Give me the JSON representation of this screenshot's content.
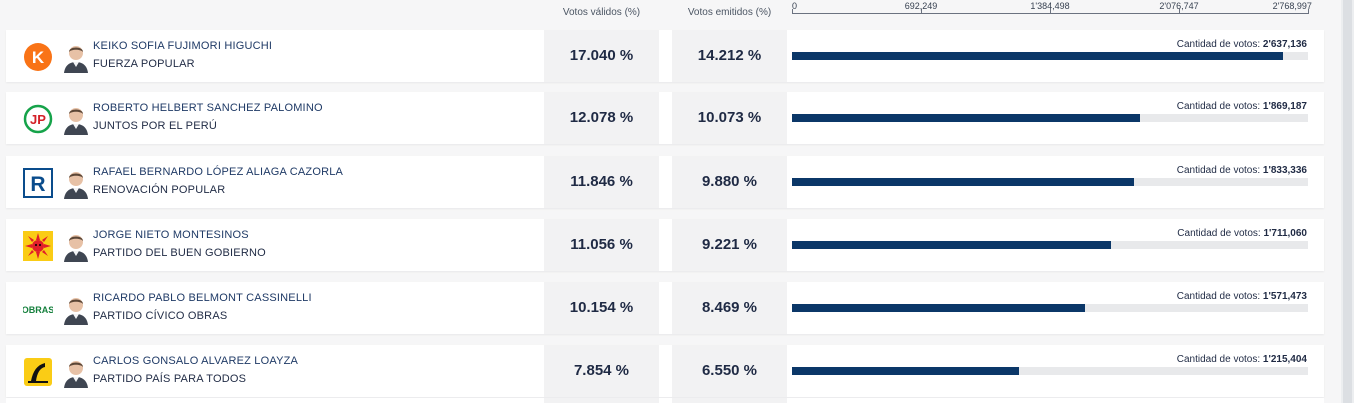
{
  "header": {
    "col_valid": "Votos válidos (%)",
    "col_emitted": "Votos emitidos (%)",
    "axis": {
      "min": 0,
      "max": 2768997,
      "ticks": [
        "0",
        "692,249",
        "1'384,498",
        "2'076,747",
        "2'768,997"
      ]
    }
  },
  "votes_prefix": "Cantidad de votos:",
  "rows": [
    {
      "candidate": "KEIKO SOFIA FUJIMORI HIGUCHI",
      "party": "FUERZA POPULAR",
      "valid_pct": "17.040 %",
      "emitted_pct": "14.212 %",
      "votes_text": "2'637,136",
      "votes": 2637136,
      "logo": "fuerza-popular-logo",
      "logo_color": "#f97316"
    },
    {
      "candidate": "ROBERTO HELBERT SANCHEZ PALOMINO",
      "party": "JUNTOS POR EL PERÚ",
      "valid_pct": "12.078 %",
      "emitted_pct": "10.073 %",
      "votes_text": "1'869,187",
      "votes": 1869187,
      "logo": "juntos-por-el-peru-logo",
      "logo_color": "#d42027"
    },
    {
      "candidate": "RAFAEL BERNARDO LÓPEZ ALIAGA CAZORLA",
      "party": "RENOVACIÓN POPULAR",
      "valid_pct": "11.846 %",
      "emitted_pct": "9.880 %",
      "votes_text": "1'833,336",
      "votes": 1833336,
      "logo": "renovacion-popular-logo",
      "logo_color": "#0a4c8c"
    },
    {
      "candidate": "JORGE NIETO MONTESINOS",
      "party": "PARTIDO DEL BUEN GOBIERNO",
      "valid_pct": "11.056 %",
      "emitted_pct": "9.221 %",
      "votes_text": "1'711,060",
      "votes": 1711060,
      "logo": "buen-gobierno-sun-logo",
      "logo_color": "#e11d2a"
    },
    {
      "candidate": "RICARDO PABLO BELMONT CASSINELLI",
      "party": "PARTIDO CÍVICO OBRAS",
      "valid_pct": "10.154 %",
      "emitted_pct": "8.469 %",
      "votes_text": "1'571,473",
      "votes": 1571473,
      "logo": "obras-logo",
      "logo_color": "#15803d"
    },
    {
      "candidate": "CARLOS GONSALO ALVAREZ LOAYZA",
      "party": "PARTIDO PAÍS PARA TODOS",
      "valid_pct": "7.854 %",
      "emitted_pct": "6.550 %",
      "votes_text": "1'215,404",
      "votes": 1215404,
      "logo": "pais-para-todos-logo",
      "logo_color": "#facc15"
    }
  ],
  "colors": {
    "bar": "#0b3768",
    "bar_track": "#e8e9eb",
    "name": "#1f3a66"
  }
}
